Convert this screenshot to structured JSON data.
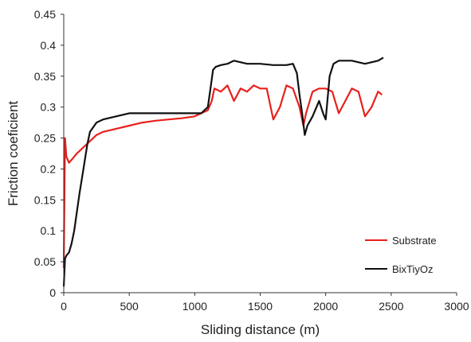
{
  "colors": {
    "substrate": "#e8201c",
    "bixtiyoz": "#111111",
    "axis": "#333333"
  },
  "chart_data": {
    "type": "line",
    "title": "",
    "xlabel": "Sliding distance (m)",
    "ylabel": "Friction coeficient",
    "xlim": [
      0,
      3000
    ],
    "ylim": [
      0,
      0.45
    ],
    "xticks": [
      0,
      500,
      1000,
      1500,
      2000,
      2500,
      3000
    ],
    "xtick_labels": [
      "0",
      "500",
      "1000",
      "1500",
      "2000",
      "2500",
      "3000"
    ],
    "yticks": [
      0,
      0.05,
      0.1,
      0.15,
      0.2,
      0.25,
      0.3,
      0.35,
      0.4,
      0.45
    ],
    "ytick_labels": [
      "0",
      "0.05",
      "0.1",
      "0.15",
      "0.2",
      "0.25",
      "0.3",
      "0.35",
      "0.4",
      "0.45"
    ],
    "grid": false,
    "legend_position": "bottom-right",
    "series": [
      {
        "name": "Substrate",
        "color": "#e8201c",
        "x": [
          0,
          10,
          20,
          40,
          60,
          80,
          100,
          150,
          200,
          250,
          300,
          400,
          500,
          600,
          700,
          800,
          900,
          1000,
          1050,
          1100,
          1130,
          1150,
          1200,
          1250,
          1300,
          1350,
          1400,
          1450,
          1500,
          1550,
          1600,
          1650,
          1700,
          1750,
          1800,
          1830,
          1850,
          1900,
          1950,
          2000,
          2050,
          2100,
          2150,
          2200,
          2250,
          2300,
          2350,
          2400,
          2430
        ],
        "values": [
          0.04,
          0.25,
          0.22,
          0.21,
          0.215,
          0.22,
          0.225,
          0.235,
          0.245,
          0.255,
          0.26,
          0.265,
          0.27,
          0.275,
          0.278,
          0.28,
          0.282,
          0.285,
          0.29,
          0.295,
          0.31,
          0.33,
          0.325,
          0.335,
          0.31,
          0.33,
          0.325,
          0.335,
          0.33,
          0.33,
          0.28,
          0.3,
          0.335,
          0.33,
          0.3,
          0.27,
          0.29,
          0.325,
          0.33,
          0.33,
          0.325,
          0.29,
          0.31,
          0.33,
          0.325,
          0.285,
          0.3,
          0.325,
          0.32
        ]
      },
      {
        "name": "BixTiyOz",
        "color": "#111111",
        "x": [
          0,
          10,
          20,
          40,
          60,
          80,
          100,
          120,
          150,
          180,
          200,
          250,
          300,
          400,
          500,
          600,
          700,
          800,
          900,
          1000,
          1050,
          1100,
          1120,
          1140,
          1160,
          1200,
          1250,
          1300,
          1400,
          1500,
          1600,
          1700,
          1750,
          1780,
          1800,
          1820,
          1840,
          1860,
          1900,
          1950,
          1980,
          2000,
          2030,
          2060,
          2100,
          2200,
          2300,
          2400,
          2440
        ],
        "values": [
          0.01,
          0.055,
          0.06,
          0.065,
          0.08,
          0.1,
          0.13,
          0.16,
          0.2,
          0.24,
          0.26,
          0.275,
          0.28,
          0.285,
          0.29,
          0.29,
          0.29,
          0.29,
          0.29,
          0.29,
          0.29,
          0.3,
          0.33,
          0.36,
          0.365,
          0.368,
          0.37,
          0.375,
          0.37,
          0.37,
          0.368,
          0.368,
          0.37,
          0.355,
          0.32,
          0.29,
          0.255,
          0.27,
          0.285,
          0.31,
          0.29,
          0.28,
          0.35,
          0.37,
          0.375,
          0.375,
          0.37,
          0.375,
          0.38
        ]
      }
    ]
  }
}
